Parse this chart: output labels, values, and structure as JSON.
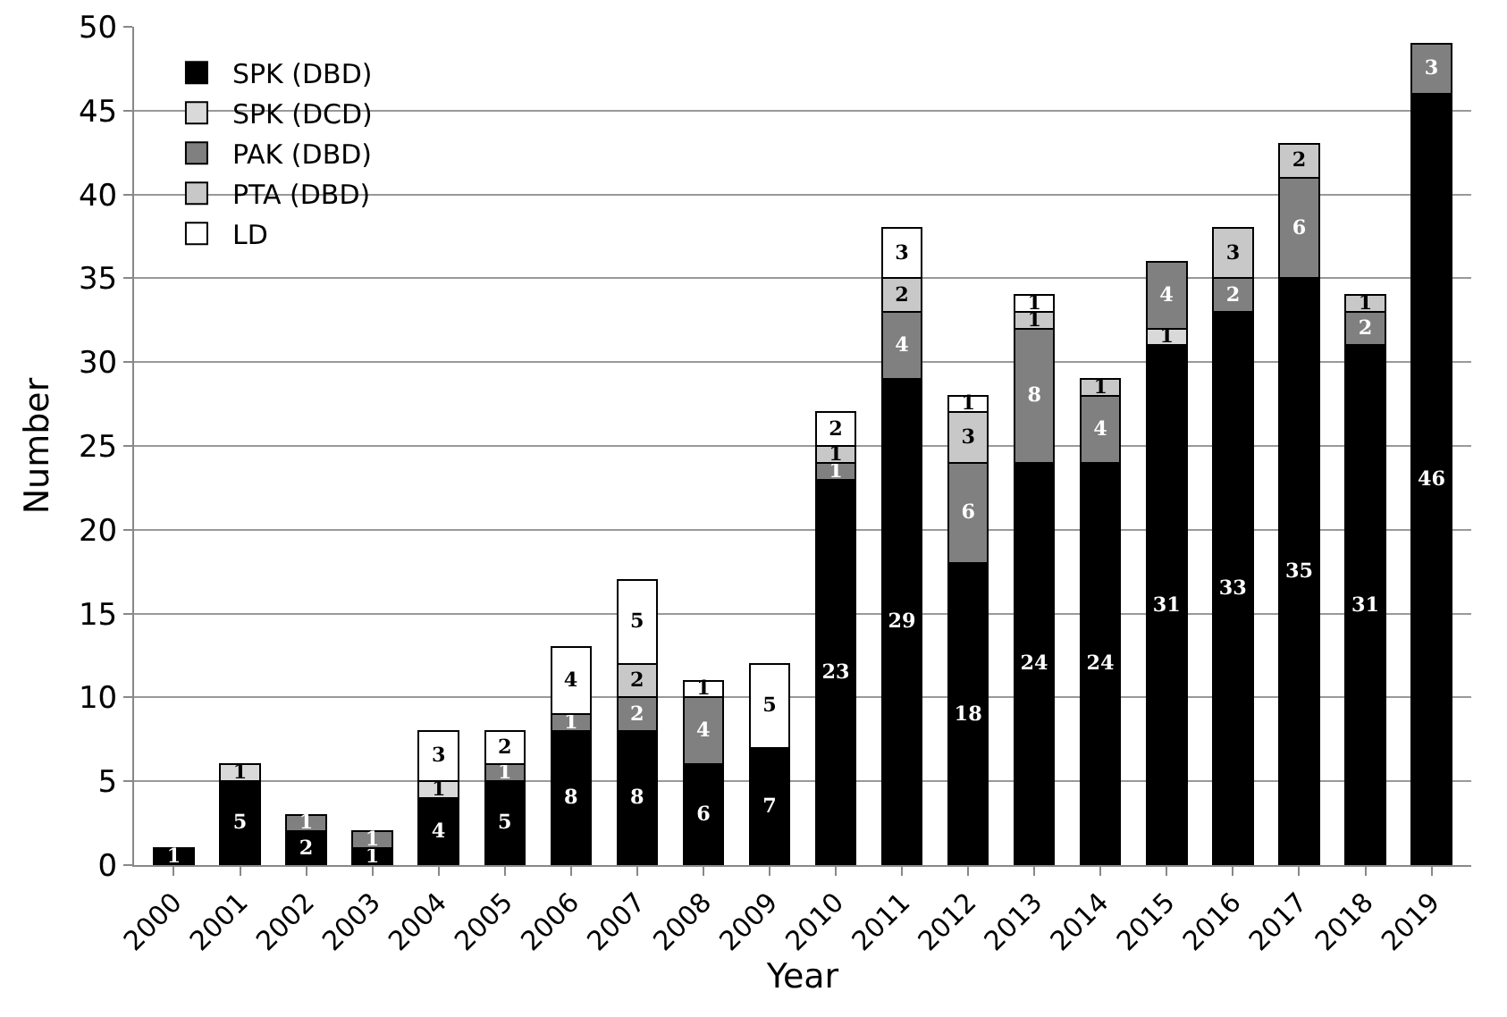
{
  "chart_data": {
    "type": "bar",
    "stacked": true,
    "xlabel": "Year",
    "ylabel": "Number",
    "categories": [
      "2000",
      "2001",
      "2002",
      "2003",
      "2004",
      "2005",
      "2006",
      "2007",
      "2008",
      "2009",
      "2010",
      "2011",
      "2012",
      "2013",
      "2014",
      "2015",
      "2016",
      "2017",
      "2018",
      "2019"
    ],
    "series": [
      {
        "name": "SPK (DBD)",
        "color": "#000000",
        "values": [
          1,
          5,
          2,
          1,
          4,
          5,
          8,
          8,
          6,
          7,
          23,
          29,
          18,
          24,
          24,
          31,
          33,
          35,
          31,
          46
        ]
      },
      {
        "name": "SPK (DCD)",
        "color": "#d9d9d9",
        "values": [
          null,
          1,
          null,
          null,
          1,
          null,
          null,
          null,
          null,
          null,
          null,
          null,
          null,
          null,
          null,
          1,
          null,
          null,
          null,
          null
        ]
      },
      {
        "name": "PAK (DBD)",
        "color": "#808080",
        "values": [
          null,
          null,
          1,
          1,
          null,
          1,
          1,
          2,
          4,
          null,
          1,
          4,
          6,
          8,
          4,
          4,
          2,
          6,
          2,
          3
        ]
      },
      {
        "name": "PTA (DBD)",
        "color": "#c8c8c8",
        "values": [
          null,
          null,
          null,
          null,
          null,
          null,
          null,
          2,
          null,
          null,
          1,
          2,
          3,
          1,
          1,
          null,
          3,
          2,
          1,
          null
        ]
      },
      {
        "name": "LD",
        "color": "#ffffff",
        "values": [
          null,
          null,
          null,
          null,
          3,
          2,
          4,
          5,
          1,
          5,
          2,
          3,
          1,
          1,
          null,
          null,
          null,
          null,
          null,
          null
        ]
      }
    ],
    "ylim": [
      0,
      50
    ],
    "yticks": [
      0,
      5,
      10,
      15,
      20,
      25,
      30,
      35,
      40,
      45,
      50
    ],
    "grid": "y",
    "legend": "top left",
    "data_labels": true
  }
}
